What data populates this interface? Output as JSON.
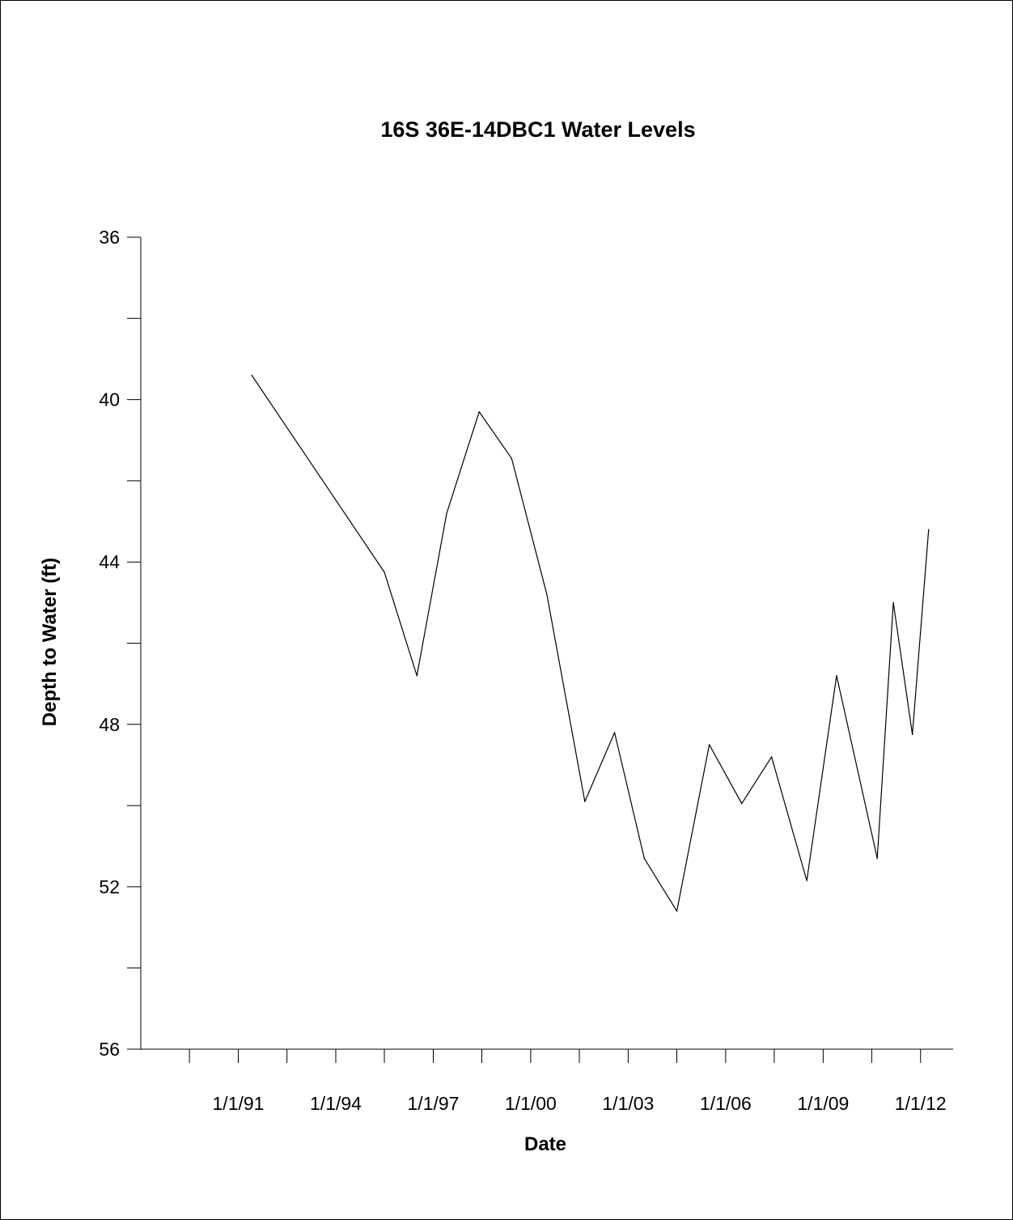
{
  "chart_data": {
    "type": "line",
    "title": "16S 36E-14DBC1 Water Levels",
    "xlabel": "Date",
    "ylabel": "Depth to Water (ft)",
    "y_inverted": true,
    "ylim": [
      36,
      56
    ],
    "y_ticks": [
      {
        "value": 36,
        "label": "36"
      },
      {
        "value": 38,
        "label": ""
      },
      {
        "value": 40,
        "label": "40"
      },
      {
        "value": 42,
        "label": ""
      },
      {
        "value": 44,
        "label": "44"
      },
      {
        "value": 46,
        "label": ""
      },
      {
        "value": 48,
        "label": "48"
      },
      {
        "value": 50,
        "label": ""
      },
      {
        "value": 52,
        "label": "52"
      },
      {
        "value": 54,
        "label": ""
      },
      {
        "value": 56,
        "label": "56"
      }
    ],
    "xlim": [
      "1988-01-01",
      "2013-01-01"
    ],
    "x_ticks": [
      {
        "value": "1989-07-01",
        "label": ""
      },
      {
        "value": "1991-01-01",
        "label": "1/1/91"
      },
      {
        "value": "1992-07-01",
        "label": ""
      },
      {
        "value": "1994-01-01",
        "label": "1/1/94"
      },
      {
        "value": "1995-07-01",
        "label": ""
      },
      {
        "value": "1997-01-01",
        "label": "1/1/97"
      },
      {
        "value": "1998-07-01",
        "label": ""
      },
      {
        "value": "2000-01-01",
        "label": "1/1/00"
      },
      {
        "value": "2001-07-01",
        "label": ""
      },
      {
        "value": "2003-01-01",
        "label": "1/1/03"
      },
      {
        "value": "2004-07-01",
        "label": ""
      },
      {
        "value": "2006-01-01",
        "label": "1/1/06"
      },
      {
        "value": "2007-07-01",
        "label": ""
      },
      {
        "value": "2009-01-01",
        "label": "1/1/09"
      },
      {
        "value": "2010-07-01",
        "label": ""
      },
      {
        "value": "2012-01-01",
        "label": "1/1/12"
      }
    ],
    "series": [
      {
        "points": [
          {
            "x": "1991-06-01",
            "y": 39.4
          },
          {
            "x": "1995-07-01",
            "y": 44.25
          },
          {
            "x": "1996-07-01",
            "y": 46.8
          },
          {
            "x": "1997-06-01",
            "y": 42.8
          },
          {
            "x": "1998-06-01",
            "y": 40.3
          },
          {
            "x": "1999-06-01",
            "y": 41.45
          },
          {
            "x": "2000-07-01",
            "y": 44.8
          },
          {
            "x": "2001-09-01",
            "y": 49.9
          },
          {
            "x": "2002-08-01",
            "y": 48.2
          },
          {
            "x": "2003-07-01",
            "y": 51.3
          },
          {
            "x": "2004-07-01",
            "y": 52.6
          },
          {
            "x": "2005-07-01",
            "y": 48.5
          },
          {
            "x": "2006-07-01",
            "y": 49.95
          },
          {
            "x": "2007-06-01",
            "y": 48.8
          },
          {
            "x": "2008-07-01",
            "y": 51.85
          },
          {
            "x": "2009-06-01",
            "y": 46.8
          },
          {
            "x": "2010-09-01",
            "y": 51.3
          },
          {
            "x": "2011-03-01",
            "y": 45.0
          },
          {
            "x": "2011-10-01",
            "y": 48.25
          },
          {
            "x": "2012-04-01",
            "y": 43.2
          }
        ]
      }
    ]
  }
}
